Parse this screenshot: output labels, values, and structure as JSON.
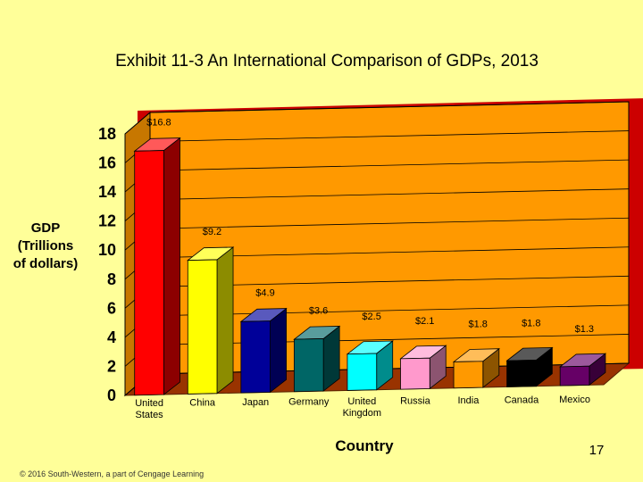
{
  "chart_data": {
    "type": "bar",
    "title": "Exhibit 11-3 An International Comparison of GDPs, 2013",
    "ylabel": "GDP (Trillions of dollars)",
    "ylabel_lines": [
      "GDP",
      "(Trillions",
      "of dollars)"
    ],
    "xlabel": "Country",
    "ylim": [
      0,
      18
    ],
    "yticks": [
      "0",
      "2",
      "4",
      "6",
      "8",
      "10",
      "12",
      "14",
      "16",
      "18"
    ],
    "categories": [
      "United States",
      "China",
      "Japan",
      "Germany",
      "United Kingdom",
      "Russia",
      "India",
      "Canada",
      "Mexico"
    ],
    "category_lines": [
      [
        "United",
        "States"
      ],
      [
        "China"
      ],
      [
        "Japan"
      ],
      [
        "Germany"
      ],
      [
        "United",
        "Kingdom"
      ],
      [
        "Russia"
      ],
      [
        "India"
      ],
      [
        "Canada"
      ],
      [
        "Mexico"
      ]
    ],
    "values": [
      16.8,
      9.2,
      4.9,
      3.6,
      2.5,
      2.1,
      1.8,
      1.8,
      1.3
    ],
    "data_labels": [
      "$16.8",
      "$9.2",
      "$4.9",
      "$3.6",
      "$2.5",
      "$2.1",
      "$1.8",
      "$1.8",
      "$1.3"
    ],
    "bar_colors": [
      "#FF0000",
      "#FFFF00",
      "#000099",
      "#006666",
      "#00FFFF",
      "#FF99CC",
      "#FF9900",
      "#000000",
      "#660066"
    ],
    "grid": true
  },
  "colors": {
    "background": "#FFFF99",
    "plot_back_wall": "#FF9900",
    "plot_side_wall": "#CC0000",
    "plot_floor": "#993300"
  },
  "footer": {
    "copyright": "© 2016 South-Western, a part of Cengage Learning",
    "page_number": "17"
  }
}
